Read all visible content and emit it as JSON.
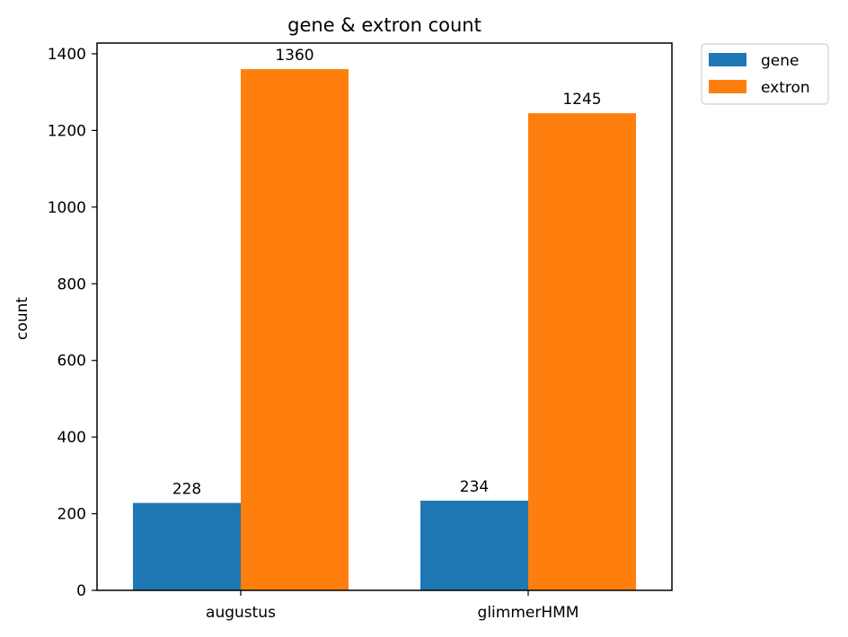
{
  "chart_data": {
    "type": "bar",
    "title": "gene & extron count",
    "xlabel": "",
    "ylabel": "count",
    "categories": [
      "augustus",
      "glimmerHMM"
    ],
    "series": [
      {
        "name": "gene",
        "values": [
          228,
          234
        ],
        "color": "#1f77b4"
      },
      {
        "name": "extron",
        "values": [
          1360,
          1245
        ],
        "color": "#ff7f0e"
      }
    ],
    "ylim": [
      0,
      1428
    ],
    "yticks": [
      0,
      200,
      400,
      600,
      800,
      1000,
      1200,
      1400
    ],
    "grid": false,
    "legend_position": "outside-top-right",
    "show_data_labels": true
  }
}
